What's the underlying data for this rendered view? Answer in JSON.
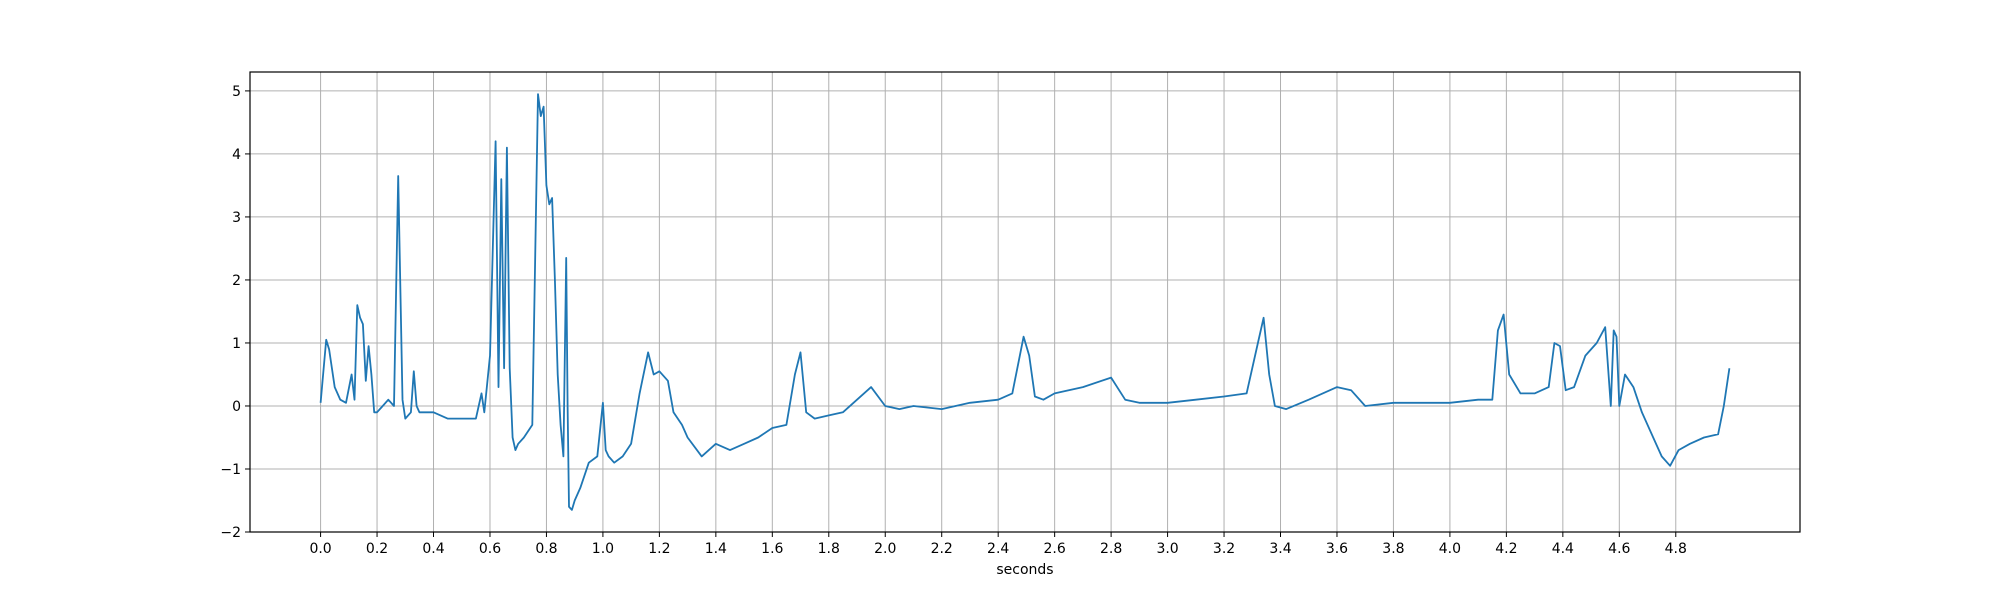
{
  "chart_data": {
    "type": "line",
    "title": "",
    "xlabel": "seconds",
    "ylabel": "",
    "xlim": [
      -0.25,
      5.24
    ],
    "ylim": [
      -2,
      5.3
    ],
    "grid": true,
    "x_ticks": [
      0.0,
      0.2,
      0.4,
      0.6,
      0.8,
      1.0,
      1.2,
      1.4,
      1.6,
      1.8,
      2.0,
      2.2,
      2.4,
      2.6,
      2.8,
      3.0,
      3.2,
      3.4,
      3.6,
      3.8,
      4.0,
      4.2,
      4.4,
      4.6,
      4.8
    ],
    "x_tick_labels": [
      "0.0",
      "0.2",
      "0.4",
      "0.6",
      "0.8",
      "1.0",
      "1.2",
      "1.4",
      "1.6",
      "1.8",
      "2.0",
      "2.2",
      "2.4",
      "2.6",
      "2.8",
      "3.0",
      "3.2",
      "3.4",
      "3.6",
      "3.8",
      "4.0",
      "4.2",
      "4.4",
      "4.6",
      "4.8"
    ],
    "y_ticks": [
      -2,
      -1,
      0,
      1,
      2,
      3,
      4,
      5
    ],
    "y_tick_labels": [
      "−2",
      "−1",
      "0",
      "1",
      "2",
      "3",
      "4",
      "5"
    ],
    "series": [
      {
        "color": "#1f77b4",
        "x": [
          0.0,
          0.02,
          0.03,
          0.05,
          0.07,
          0.09,
          0.11,
          0.12,
          0.13,
          0.14,
          0.15,
          0.16,
          0.17,
          0.18,
          0.19,
          0.2,
          0.22,
          0.24,
          0.26,
          0.275,
          0.29,
          0.3,
          0.32,
          0.33,
          0.34,
          0.35,
          0.37,
          0.4,
          0.45,
          0.5,
          0.55,
          0.57,
          0.58,
          0.6,
          0.62,
          0.63,
          0.64,
          0.65,
          0.66,
          0.67,
          0.68,
          0.69,
          0.7,
          0.72,
          0.75,
          0.77,
          0.78,
          0.79,
          0.8,
          0.81,
          0.82,
          0.83,
          0.84,
          0.85,
          0.86,
          0.87,
          0.875,
          0.88,
          0.89,
          0.9,
          0.92,
          0.95,
          0.98,
          1.0,
          1.01,
          1.02,
          1.04,
          1.07,
          1.1,
          1.13,
          1.16,
          1.18,
          1.2,
          1.23,
          1.25,
          1.28,
          1.3,
          1.35,
          1.4,
          1.45,
          1.5,
          1.55,
          1.6,
          1.65,
          1.68,
          1.7,
          1.72,
          1.75,
          1.8,
          1.85,
          1.9,
          1.95,
          2.0,
          2.05,
          2.1,
          2.2,
          2.3,
          2.4,
          2.45,
          2.49,
          2.51,
          2.53,
          2.56,
          2.6,
          2.7,
          2.8,
          2.85,
          2.9,
          3.0,
          3.1,
          3.2,
          3.28,
          3.32,
          3.34,
          3.36,
          3.38,
          3.42,
          3.5,
          3.6,
          3.65,
          3.7,
          3.8,
          3.9,
          4.0,
          4.1,
          4.15,
          4.17,
          4.19,
          4.21,
          4.25,
          4.3,
          4.35,
          4.37,
          4.39,
          4.41,
          4.44,
          4.48,
          4.52,
          4.55,
          4.57,
          4.58,
          4.59,
          4.6,
          4.62,
          4.65,
          4.68,
          4.72,
          4.75,
          4.78,
          4.81,
          4.85,
          4.9,
          4.95,
          4.97,
          4.99
        ],
        "y": [
          0.05,
          1.05,
          0.9,
          0.3,
          0.1,
          0.05,
          0.5,
          0.1,
          1.6,
          1.4,
          1.3,
          0.4,
          0.95,
          0.5,
          -0.1,
          -0.1,
          0.0,
          0.1,
          0.0,
          3.65,
          0.1,
          -0.2,
          -0.1,
          0.55,
          0.0,
          -0.1,
          -0.1,
          -0.1,
          -0.2,
          -0.2,
          -0.2,
          0.2,
          -0.1,
          0.8,
          4.2,
          0.3,
          3.6,
          0.6,
          4.1,
          0.6,
          -0.5,
          -0.7,
          -0.6,
          -0.5,
          -0.3,
          4.95,
          4.6,
          4.75,
          3.5,
          3.2,
          3.3,
          2.0,
          0.5,
          -0.3,
          -0.8,
          2.35,
          0.0,
          -1.6,
          -1.65,
          -1.5,
          -1.3,
          -0.9,
          -0.8,
          0.05,
          -0.7,
          -0.8,
          -0.9,
          -0.8,
          -0.6,
          0.2,
          0.85,
          0.5,
          0.55,
          0.4,
          -0.1,
          -0.3,
          -0.5,
          -0.8,
          -0.6,
          -0.7,
          -0.6,
          -0.5,
          -0.35,
          -0.3,
          0.5,
          0.85,
          -0.1,
          -0.2,
          -0.15,
          -0.1,
          0.1,
          0.3,
          0.0,
          -0.05,
          0.0,
          -0.05,
          0.05,
          0.1,
          0.2,
          1.1,
          0.8,
          0.15,
          0.1,
          0.2,
          0.3,
          0.45,
          0.1,
          0.05,
          0.05,
          0.1,
          0.15,
          0.2,
          1.0,
          1.4,
          0.5,
          0.0,
          -0.05,
          0.1,
          0.3,
          0.25,
          0.0,
          0.05,
          0.05,
          0.05,
          0.1,
          0.1,
          1.2,
          1.45,
          0.5,
          0.2,
          0.2,
          0.3,
          1.0,
          0.95,
          0.25,
          0.3,
          0.8,
          1.0,
          1.25,
          0.0,
          1.2,
          1.1,
          0.0,
          0.5,
          0.3,
          -0.1,
          -0.5,
          -0.8,
          -0.95,
          -0.7,
          -0.6,
          -0.5,
          -0.45,
          0.0,
          0.6
        ]
      }
    ]
  }
}
